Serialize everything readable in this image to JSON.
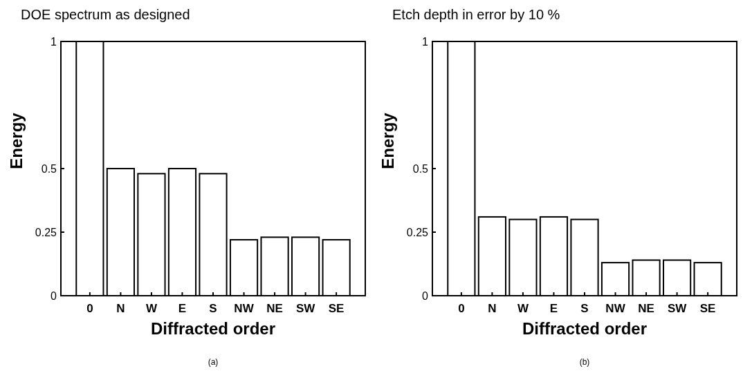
{
  "chart_data": [
    {
      "type": "bar",
      "title": "DOE spectrum as designed",
      "xlabel": "Diffracted order",
      "ylabel": "Energy",
      "categories": [
        "0",
        "N",
        "W",
        "E",
        "S",
        "NW",
        "NE",
        "SW",
        "SE"
      ],
      "values": [
        1,
        0.5,
        0.48,
        0.5,
        0.48,
        0.22,
        0.23,
        0.23,
        0.22
      ],
      "color": "#ffffff",
      "ylim": [
        0,
        1
      ],
      "yticks": [
        0,
        0.25,
        0.5,
        1
      ],
      "grid": false,
      "annotations": [
        "(a)"
      ]
    },
    {
      "type": "bar",
      "title": "Etch depth in error by 10 %",
      "xlabel": "Diffracted order",
      "ylabel": "Energy",
      "categories": [
        "0",
        "N",
        "W",
        "E",
        "S",
        "NW",
        "NE",
        "SW",
        "SE"
      ],
      "values": [
        1,
        0.31,
        0.3,
        0.31,
        0.3,
        0.13,
        0.14,
        0.14,
        0.13
      ],
      "color": "#ffffff",
      "ylim": [
        0,
        1
      ],
      "yticks": [
        0,
        0.25,
        0.5,
        1
      ],
      "grid": false,
      "annotations": [
        "(b)"
      ]
    }
  ]
}
